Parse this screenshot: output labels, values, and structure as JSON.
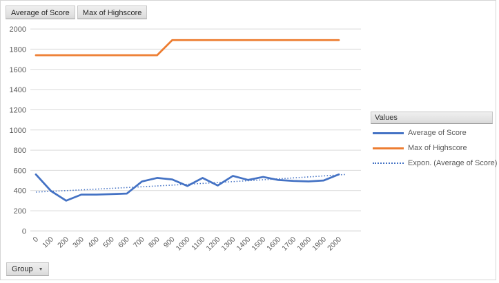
{
  "colors": {
    "accent_blue": "#4472C4",
    "accent_orange": "#ED7D31",
    "gridline": "#D9D9D9",
    "axis_line": "#C9C9C9",
    "tick_text": "#595959"
  },
  "field_buttons": {
    "value_buttons": [
      {
        "label": "Average of Score"
      },
      {
        "label": "Max of Highscore"
      }
    ],
    "axis_button": {
      "label": "Group"
    }
  },
  "legend": {
    "header": "Values",
    "position": "right",
    "items": [
      {
        "label": "Average of Score",
        "swatch": "solid-blue"
      },
      {
        "label": "Max of Highscore",
        "swatch": "solid-orange"
      },
      {
        "label": "Expon. (Average of Score)",
        "swatch": "dotted-blue"
      }
    ]
  },
  "chart_data": {
    "type": "line",
    "title": "",
    "xlabel": "",
    "ylabel": "",
    "grid": true,
    "legend_position": "right",
    "ylim": [
      0,
      2000
    ],
    "ytick_step": 200,
    "yticks": [
      0,
      200,
      400,
      600,
      800,
      1000,
      1200,
      1400,
      1600,
      1800,
      2000
    ],
    "categories": [
      "0",
      "100",
      "200",
      "300",
      "400",
      "500",
      "600",
      "700",
      "800",
      "900",
      "1000",
      "1100",
      "1200",
      "1300",
      "1400",
      "1500",
      "1600",
      "1700",
      "1800",
      "1900",
      "2000"
    ],
    "series": [
      {
        "name": "Average of Score",
        "color": "#4472C4",
        "values": [
          560,
          395,
          300,
          360,
          360,
          365,
          370,
          490,
          525,
          510,
          445,
          525,
          450,
          545,
          505,
          535,
          505,
          495,
          490,
          500,
          560
        ]
      },
      {
        "name": "Max of Highscore",
        "color": "#ED7D31",
        "values": [
          1740,
          1740,
          1740,
          1740,
          1740,
          1740,
          1740,
          1740,
          1740,
          1890,
          1890,
          1890,
          1890,
          1890,
          1890,
          1890,
          1890,
          1890,
          1890,
          1890,
          1890
        ]
      }
    ],
    "trendline": {
      "name": "Expon. (Average of Score)",
      "of_series": "Average of Score",
      "shape": "exponential",
      "color": "#4472C4",
      "style": "dotted",
      "start_value": 385,
      "end_value": 555,
      "forecast_categories": 0.7
    }
  }
}
